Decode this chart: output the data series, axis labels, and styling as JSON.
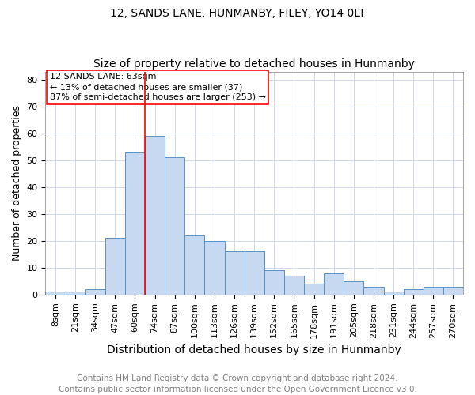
{
  "title1": "12, SANDS LANE, HUNMANBY, FILEY, YO14 0LT",
  "title2": "Size of property relative to detached houses in Hunmanby",
  "xlabel": "Distribution of detached houses by size in Hunmanby",
  "ylabel": "Number of detached properties",
  "categories": [
    "8sqm",
    "21sqm",
    "34sqm",
    "47sqm",
    "60sqm",
    "74sqm",
    "87sqm",
    "100sqm",
    "113sqm",
    "126sqm",
    "139sqm",
    "152sqm",
    "165sqm",
    "178sqm",
    "191sqm",
    "205sqm",
    "218sqm",
    "231sqm",
    "244sqm",
    "257sqm",
    "270sqm"
  ],
  "values": [
    1,
    1,
    2,
    21,
    53,
    59,
    51,
    22,
    20,
    16,
    16,
    9,
    7,
    4,
    8,
    5,
    3,
    1,
    2,
    3,
    3
  ],
  "bar_color": "#c6d9f0",
  "bar_edge_color": "#5a8fc3",
  "annotation_line1": "12 SANDS LANE: 63sqm",
  "annotation_line2": "← 13% of detached houses are smaller (37)",
  "annotation_line3": "87% of semi-detached houses are larger (253) →",
  "ylim": [
    0,
    83
  ],
  "yticks": [
    0,
    10,
    20,
    30,
    40,
    50,
    60,
    70,
    80
  ],
  "footer1": "Contains HM Land Registry data © Crown copyright and database right 2024.",
  "footer2": "Contains public sector information licensed under the Open Government Licence v3.0.",
  "title1_fontsize": 10,
  "title2_fontsize": 10,
  "xlabel_fontsize": 10,
  "ylabel_fontsize": 9,
  "tick_fontsize": 8,
  "annot_fontsize": 8,
  "footer_fontsize": 7.5
}
